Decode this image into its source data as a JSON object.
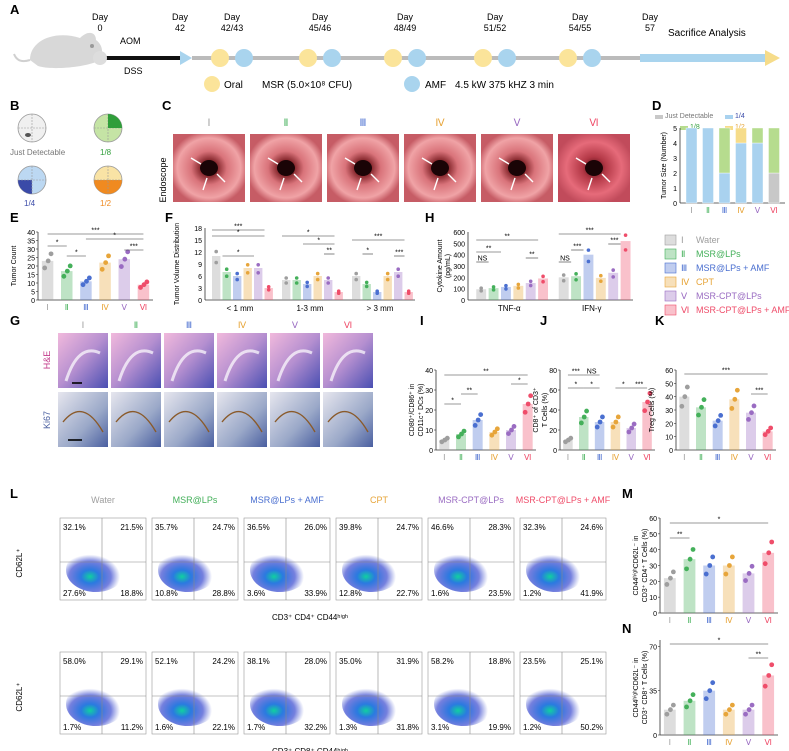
{
  "panels": {
    "A": "A",
    "B": "B",
    "C": "C",
    "D": "D",
    "E": "E",
    "F": "F",
    "G": "G",
    "H": "H",
    "I": "I",
    "J": "J",
    "K": "K",
    "L": "L",
    "M": "M",
    "N": "N"
  },
  "timeline": {
    "days": [
      "Day\n0",
      "Day\n42",
      "Day\n42/43",
      "Day\n45/46",
      "Day\n48/49",
      "Day\n51/52",
      "Day\n54/55",
      "Day\n57"
    ],
    "aom": "AOM",
    "dss": "DSS",
    "end_label": "Sacrifice  Analysis",
    "oral_label": "Oral",
    "oral_desc": "MSR (5.0×10⁸ CFU)",
    "amf_label": "AMF",
    "amf_desc": "4.5 kW 375 kHZ 3 min",
    "oral_color": "#fbe49a",
    "amf_color": "#a9d4ee"
  },
  "tumor_size": {
    "jd": "Just Detectable",
    "q18": "1/8",
    "q14": "1/4",
    "q12": "1/2"
  },
  "groups": [
    "Ⅰ",
    "Ⅱ",
    "Ⅲ",
    "Ⅳ",
    "Ⅴ",
    "Ⅵ"
  ],
  "group_colors": [
    "#9e9e9e",
    "#44b05a",
    "#4a6fd0",
    "#e7a53a",
    "#9a6cc2",
    "#ef4d6a"
  ],
  "endoscope_label": "Endoscope",
  "legend": [
    {
      "num": "Ⅰ",
      "name": "Water"
    },
    {
      "num": "Ⅱ",
      "name": "MSR@LPs"
    },
    {
      "num": "Ⅲ",
      "name": "MSR@LPs + AMF"
    },
    {
      "num": "Ⅳ",
      "name": "CPT"
    },
    {
      "num": "Ⅴ",
      "name": "MSR-CPT@LPs"
    },
    {
      "num": "Ⅵ",
      "name": "MSR-CPT@LPs + AMF"
    }
  ],
  "hist": {
    "he": "H&E",
    "ki67": "Ki67"
  },
  "flow": {
    "titles": [
      "Water",
      "MSR@LPs",
      "MSR@LPs + AMF",
      "CPT",
      "MSR-CPT@LPs",
      "MSR-CPT@LPs + AMF"
    ],
    "top_q": [
      [
        "32.1%",
        "21.5%",
        "27.6%",
        "18.8%"
      ],
      [
        "35.7%",
        "24.7%",
        "10.8%",
        "28.8%"
      ],
      [
        "36.5%",
        "26.0%",
        "3.6%",
        "33.9%"
      ],
      [
        "39.8%",
        "24.7%",
        "12.8%",
        "22.7%"
      ],
      [
        "46.6%",
        "28.3%",
        "1.6%",
        "23.5%"
      ],
      [
        "32.3%",
        "24.6%",
        "1.2%",
        "41.9%"
      ]
    ],
    "bot_q": [
      [
        "58.0%",
        "29.1%",
        "1.7%",
        "11.2%"
      ],
      [
        "52.1%",
        "24.2%",
        "1.6%",
        "22.1%"
      ],
      [
        "38.1%",
        "28.0%",
        "1.7%",
        "32.2%"
      ],
      [
        "35.0%",
        "31.9%",
        "1.3%",
        "31.8%"
      ],
      [
        "58.2%",
        "18.8%",
        "3.1%",
        "19.9%"
      ],
      [
        "23.5%",
        "25.1%",
        "1.2%",
        "50.2%"
      ]
    ],
    "top_y": "CD62L⁺",
    "top_x": "CD3⁺ CD4⁺ CD44ʰⁱᵍʰ",
    "bot_y": "CD62L⁺",
    "bot_x": "CD3⁺ CD8⁺ CD44ʰⁱᵍʰ"
  },
  "chart_data": [
    {
      "panel": "D",
      "type": "bar",
      "stacked": true,
      "ylabel": "Tumor Size (Number)",
      "ylim": [
        0,
        5
      ],
      "categories": [
        "Ⅰ",
        "Ⅱ",
        "Ⅲ",
        "Ⅳ",
        "Ⅴ",
        "Ⅵ"
      ],
      "series": [
        {
          "name": "Just Detectable",
          "values": [
            0,
            0,
            0,
            0,
            0,
            2
          ],
          "color": "#c8c8c8"
        },
        {
          "name": "1/4",
          "values": [
            5,
            5,
            2,
            4,
            4,
            0
          ],
          "color": "#a9d2ef"
        },
        {
          "name": "1/8",
          "values": [
            0,
            0,
            3,
            0,
            1,
            3
          ],
          "color": "#b6dc8e"
        },
        {
          "name": "1/2",
          "values": [
            0,
            0,
            0,
            1,
            0,
            0
          ],
          "color": "#f6dc8a"
        }
      ]
    },
    {
      "panel": "E",
      "type": "bar",
      "ylabel": "Tumor Count",
      "ylim": [
        0,
        40
      ],
      "yticks": [
        0,
        5,
        10,
        15,
        20,
        25,
        30,
        35,
        40
      ],
      "categories": [
        "Ⅰ",
        "Ⅱ",
        "Ⅲ",
        "Ⅳ",
        "Ⅴ",
        "Ⅵ"
      ],
      "values": [
        23,
        17,
        11,
        22,
        24,
        9
      ],
      "sig": [
        "*",
        "*",
        "***",
        "*",
        "***"
      ]
    },
    {
      "panel": "F",
      "type": "bar",
      "ylabel": "Tumor Volume Distribution",
      "ylim": [
        0,
        18
      ],
      "yticks": [
        0,
        3,
        6,
        9,
        12,
        15,
        18
      ],
      "groups": [
        "< 1 mm",
        "1-3 mm",
        "> 3 mm"
      ],
      "values": [
        [
          11,
          7,
          6,
          8,
          8,
          3
        ],
        [
          5,
          5,
          4,
          6,
          5,
          2
        ],
        [
          6,
          4,
          2,
          6,
          7,
          2
        ]
      ],
      "sig": [
        "***",
        "*",
        "*",
        "*",
        "*",
        "**",
        "***",
        "*",
        "***"
      ]
    },
    {
      "panel": "H",
      "type": "bar",
      "ylabel": "Cytokine Amount (pg/mL)",
      "ylim": [
        0,
        600
      ],
      "yticks": [
        0,
        100,
        200,
        300,
        400,
        500,
        600
      ],
      "groups": [
        "TNF-α",
        "IFN-γ"
      ],
      "values": [
        [
          95,
          105,
          115,
          125,
          150,
          190
        ],
        [
          200,
          210,
          400,
          195,
          240,
          520
        ]
      ],
      "sig": [
        "NS",
        "**",
        "**",
        "**",
        "NS",
        "***",
        "***",
        "***"
      ]
    },
    {
      "panel": "I",
      "type": "bar",
      "ylabel": "CD80⁺/CD86⁺ in CD11c⁺ DCs (%)",
      "ylim": [
        0,
        40
      ],
      "yticks": [
        0,
        10,
        20,
        30,
        40
      ],
      "categories": [
        "Ⅰ",
        "Ⅱ",
        "Ⅲ",
        "Ⅳ",
        "Ⅴ",
        "Ⅵ"
      ],
      "values": [
        5,
        8,
        15,
        9,
        10,
        23
      ],
      "sig": [
        "*",
        "**",
        "*",
        "**"
      ]
    },
    {
      "panel": "J",
      "type": "bar",
      "ylabel": "CD8⁺ of CD3⁺ T Cells (%)",
      "ylim": [
        0,
        80
      ],
      "yticks": [
        0,
        20,
        40,
        60,
        80
      ],
      "categories": [
        "Ⅰ",
        "Ⅱ",
        "Ⅲ",
        "Ⅳ",
        "Ⅴ",
        "Ⅵ"
      ],
      "values": [
        10,
        33,
        28,
        28,
        22,
        48
      ],
      "sig": [
        "***",
        "NS",
        "*",
        "*",
        "*",
        "***"
      ]
    },
    {
      "panel": "K",
      "type": "bar",
      "ylabel": "Treg Cells (%)",
      "ylim": [
        0,
        60
      ],
      "yticks": [
        0,
        10,
        20,
        30,
        40,
        50,
        60
      ],
      "categories": [
        "Ⅰ",
        "Ⅱ",
        "Ⅲ",
        "Ⅳ",
        "Ⅴ",
        "Ⅵ"
      ],
      "values": [
        40,
        32,
        22,
        38,
        28,
        14
      ],
      "sig": [
        "***",
        "***"
      ]
    },
    {
      "panel": "M",
      "type": "bar",
      "ylabel": "CD44ʰⁱᵍʰCD62L⁻ in CD3⁺ CD4⁺ T Cells (%)",
      "ylim": [
        0,
        60
      ],
      "yticks": [
        0,
        10,
        20,
        30,
        40,
        50,
        60
      ],
      "categories": [
        "Ⅰ",
        "Ⅱ",
        "Ⅲ",
        "Ⅳ",
        "Ⅴ",
        "Ⅵ"
      ],
      "values": [
        22,
        34,
        30,
        30,
        25,
        38
      ],
      "sig": [
        "**",
        "*"
      ]
    },
    {
      "panel": "N",
      "type": "bar",
      "ylabel": "CD44ʰⁱᵍʰCD62L⁻ in CD3⁺ CD8⁺ T Cells (%)",
      "ylim": [
        0,
        75
      ],
      "yticks": [
        0,
        35,
        70
      ],
      "categories": [
        "Ⅰ",
        "Ⅱ",
        "Ⅲ",
        "Ⅳ",
        "Ⅴ",
        "Ⅵ"
      ],
      "values": [
        20,
        27,
        35,
        20,
        20,
        47
      ],
      "sig": [
        "*",
        "**"
      ]
    }
  ]
}
